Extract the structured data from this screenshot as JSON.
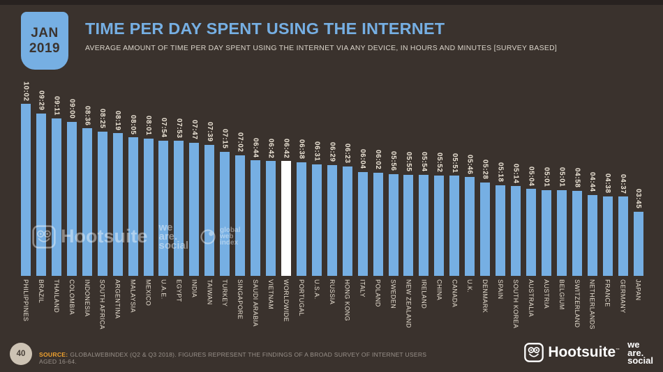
{
  "badge": {
    "line1": "JAN",
    "line2": "2019"
  },
  "header": {
    "title": "TIME PER DAY SPENT USING THE INTERNET",
    "subtitle": "AVERAGE AMOUNT OF TIME PER DAY SPENT USING THE INTERNET VIA ANY DEVICE, IN HOURS AND MINUTES [SURVEY BASED]"
  },
  "chart_data": {
    "type": "bar",
    "title": "Time per day spent using the internet (hours:minutes)",
    "categories": [
      "PHILIPPINES",
      "BRAZIL",
      "THAILAND",
      "COLOMBIA",
      "INDONESIA",
      "SOUTH AFRICA",
      "ARGENTINA",
      "MALAYSIA",
      "MEXICO",
      "U.A.E.",
      "EGYPT",
      "INDIA",
      "TAIWAN",
      "TURKEY",
      "SINGAPORE",
      "SAUDI ARABIA",
      "VIETNAM",
      "WORLDWIDE",
      "PORTUGAL",
      "U.S.A.",
      "RUSSIA",
      "HONG KONG",
      "ITALY",
      "POLAND",
      "SWEDEN",
      "NEW ZEALAND",
      "IRELAND",
      "CHINA",
      "CANADA",
      "U.K.",
      "DENMARK",
      "SPAIN",
      "SOUTH KOREA",
      "AUSTRALIA",
      "AUSTRIA",
      "BELGIUM",
      "SWITZERLAND",
      "NETHERLANDS",
      "FRANCE",
      "GERMANY",
      "JAPAN"
    ],
    "values_hhmm": [
      "10:02",
      "09:29",
      "09:11",
      "09:00",
      "08:36",
      "08:25",
      "08:19",
      "08:05",
      "08:01",
      "07:54",
      "07:53",
      "07:47",
      "07:39",
      "07:15",
      "07:02",
      "06:44",
      "06:42",
      "06:42",
      "06:38",
      "06:31",
      "06:29",
      "06:23",
      "06:04",
      "06:02",
      "05:56",
      "05:55",
      "05:54",
      "05:52",
      "05:51",
      "05:46",
      "05:28",
      "05:18",
      "05:14",
      "05:04",
      "05:01",
      "05:01",
      "04:58",
      "04:44",
      "04:38",
      "04:37",
      "03:45"
    ],
    "highlight_category": "WORLDWIDE",
    "bar_color": "#76afe3",
    "highlight_color": "#ffffff",
    "xlabel": "",
    "ylabel": "",
    "legend": "none",
    "grid": "off"
  },
  "watermark": {
    "hootsuite": "Hootsuite",
    "we_are_social_lines": [
      "we",
      "are.",
      "social"
    ],
    "gwi_lines": [
      "global",
      "web",
      "index"
    ]
  },
  "footer": {
    "page": "40",
    "source_label": "SOURCE:",
    "source_text": "GLOBALWEBINDEX (Q2 & Q3 2018). FIGURES REPRESENT THE FINDINGS OF A BROAD SURVEY OF INTERNET USERS AGED 16-64.",
    "hootsuite": "Hootsuite",
    "hootsuite_tm": "™",
    "we_are_social_lines": [
      "we",
      "are.",
      "social"
    ]
  },
  "colors": {
    "background": "#3a322d",
    "accent_blue": "#76afe3",
    "highlight_white": "#ffffff",
    "source_orange": "#f0a22e",
    "label_cream": "#ece4d6"
  }
}
